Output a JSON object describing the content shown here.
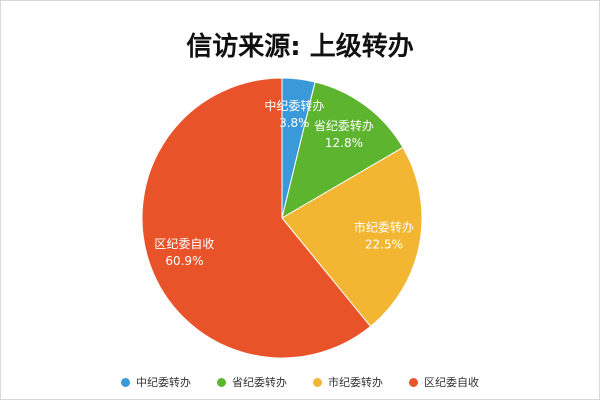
{
  "chart_data": {
    "type": "pie",
    "title": "信访来源: 上级转办",
    "legend_position": "bottom",
    "slices": [
      {
        "label": "中纪委转办",
        "value": 3.8,
        "display": "3.8%",
        "color": "#3a9ad9"
      },
      {
        "label": "省纪委转办",
        "value": 12.8,
        "display": "12.8%",
        "color": "#5db52f"
      },
      {
        "label": "市纪委转办",
        "value": 22.5,
        "display": "22.5%",
        "color": "#f2b632"
      },
      {
        "label": "区纪委自收",
        "value": 60.9,
        "display": "60.9%",
        "color": "#e8532a"
      }
    ]
  }
}
